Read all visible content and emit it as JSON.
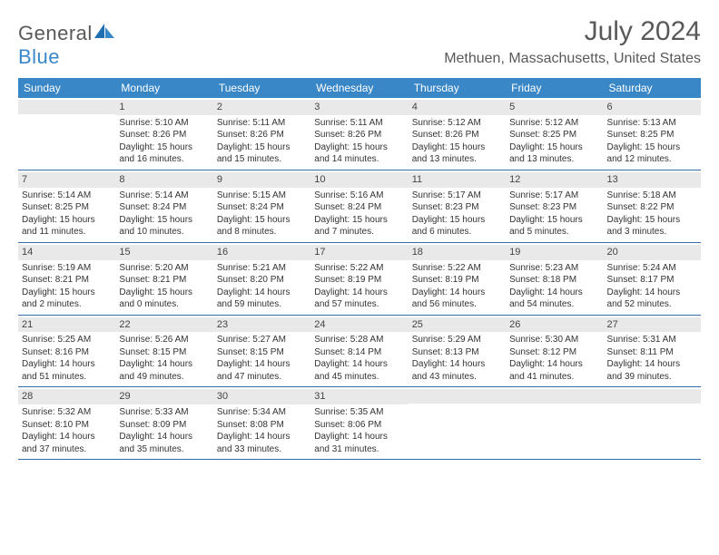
{
  "logo": {
    "general": "General",
    "blue": "Blue"
  },
  "title": "July 2024",
  "location": "Methuen, Massachusetts, United States",
  "colors": {
    "header_bg": "#3a87c7",
    "header_text": "#ffffff",
    "strip_bg": "#e9e9e9",
    "row_border": "#2f6ea8",
    "title_color": "#595959",
    "text_color": "#333333"
  },
  "day_headers": [
    "Sunday",
    "Monday",
    "Tuesday",
    "Wednesday",
    "Thursday",
    "Friday",
    "Saturday"
  ],
  "weeks": [
    [
      {
        "n": "",
        "sr": "",
        "ss": "",
        "dl": ""
      },
      {
        "n": "1",
        "sr": "Sunrise: 5:10 AM",
        "ss": "Sunset: 8:26 PM",
        "dl": "Daylight: 15 hours and 16 minutes."
      },
      {
        "n": "2",
        "sr": "Sunrise: 5:11 AM",
        "ss": "Sunset: 8:26 PM",
        "dl": "Daylight: 15 hours and 15 minutes."
      },
      {
        "n": "3",
        "sr": "Sunrise: 5:11 AM",
        "ss": "Sunset: 8:26 PM",
        "dl": "Daylight: 15 hours and 14 minutes."
      },
      {
        "n": "4",
        "sr": "Sunrise: 5:12 AM",
        "ss": "Sunset: 8:26 PM",
        "dl": "Daylight: 15 hours and 13 minutes."
      },
      {
        "n": "5",
        "sr": "Sunrise: 5:12 AM",
        "ss": "Sunset: 8:25 PM",
        "dl": "Daylight: 15 hours and 13 minutes."
      },
      {
        "n": "6",
        "sr": "Sunrise: 5:13 AM",
        "ss": "Sunset: 8:25 PM",
        "dl": "Daylight: 15 hours and 12 minutes."
      }
    ],
    [
      {
        "n": "7",
        "sr": "Sunrise: 5:14 AM",
        "ss": "Sunset: 8:25 PM",
        "dl": "Daylight: 15 hours and 11 minutes."
      },
      {
        "n": "8",
        "sr": "Sunrise: 5:14 AM",
        "ss": "Sunset: 8:24 PM",
        "dl": "Daylight: 15 hours and 10 minutes."
      },
      {
        "n": "9",
        "sr": "Sunrise: 5:15 AM",
        "ss": "Sunset: 8:24 PM",
        "dl": "Daylight: 15 hours and 8 minutes."
      },
      {
        "n": "10",
        "sr": "Sunrise: 5:16 AM",
        "ss": "Sunset: 8:24 PM",
        "dl": "Daylight: 15 hours and 7 minutes."
      },
      {
        "n": "11",
        "sr": "Sunrise: 5:17 AM",
        "ss": "Sunset: 8:23 PM",
        "dl": "Daylight: 15 hours and 6 minutes."
      },
      {
        "n": "12",
        "sr": "Sunrise: 5:17 AM",
        "ss": "Sunset: 8:23 PM",
        "dl": "Daylight: 15 hours and 5 minutes."
      },
      {
        "n": "13",
        "sr": "Sunrise: 5:18 AM",
        "ss": "Sunset: 8:22 PM",
        "dl": "Daylight: 15 hours and 3 minutes."
      }
    ],
    [
      {
        "n": "14",
        "sr": "Sunrise: 5:19 AM",
        "ss": "Sunset: 8:21 PM",
        "dl": "Daylight: 15 hours and 2 minutes."
      },
      {
        "n": "15",
        "sr": "Sunrise: 5:20 AM",
        "ss": "Sunset: 8:21 PM",
        "dl": "Daylight: 15 hours and 0 minutes."
      },
      {
        "n": "16",
        "sr": "Sunrise: 5:21 AM",
        "ss": "Sunset: 8:20 PM",
        "dl": "Daylight: 14 hours and 59 minutes."
      },
      {
        "n": "17",
        "sr": "Sunrise: 5:22 AM",
        "ss": "Sunset: 8:19 PM",
        "dl": "Daylight: 14 hours and 57 minutes."
      },
      {
        "n": "18",
        "sr": "Sunrise: 5:22 AM",
        "ss": "Sunset: 8:19 PM",
        "dl": "Daylight: 14 hours and 56 minutes."
      },
      {
        "n": "19",
        "sr": "Sunrise: 5:23 AM",
        "ss": "Sunset: 8:18 PM",
        "dl": "Daylight: 14 hours and 54 minutes."
      },
      {
        "n": "20",
        "sr": "Sunrise: 5:24 AM",
        "ss": "Sunset: 8:17 PM",
        "dl": "Daylight: 14 hours and 52 minutes."
      }
    ],
    [
      {
        "n": "21",
        "sr": "Sunrise: 5:25 AM",
        "ss": "Sunset: 8:16 PM",
        "dl": "Daylight: 14 hours and 51 minutes."
      },
      {
        "n": "22",
        "sr": "Sunrise: 5:26 AM",
        "ss": "Sunset: 8:15 PM",
        "dl": "Daylight: 14 hours and 49 minutes."
      },
      {
        "n": "23",
        "sr": "Sunrise: 5:27 AM",
        "ss": "Sunset: 8:15 PM",
        "dl": "Daylight: 14 hours and 47 minutes."
      },
      {
        "n": "24",
        "sr": "Sunrise: 5:28 AM",
        "ss": "Sunset: 8:14 PM",
        "dl": "Daylight: 14 hours and 45 minutes."
      },
      {
        "n": "25",
        "sr": "Sunrise: 5:29 AM",
        "ss": "Sunset: 8:13 PM",
        "dl": "Daylight: 14 hours and 43 minutes."
      },
      {
        "n": "26",
        "sr": "Sunrise: 5:30 AM",
        "ss": "Sunset: 8:12 PM",
        "dl": "Daylight: 14 hours and 41 minutes."
      },
      {
        "n": "27",
        "sr": "Sunrise: 5:31 AM",
        "ss": "Sunset: 8:11 PM",
        "dl": "Daylight: 14 hours and 39 minutes."
      }
    ],
    [
      {
        "n": "28",
        "sr": "Sunrise: 5:32 AM",
        "ss": "Sunset: 8:10 PM",
        "dl": "Daylight: 14 hours and 37 minutes."
      },
      {
        "n": "29",
        "sr": "Sunrise: 5:33 AM",
        "ss": "Sunset: 8:09 PM",
        "dl": "Daylight: 14 hours and 35 minutes."
      },
      {
        "n": "30",
        "sr": "Sunrise: 5:34 AM",
        "ss": "Sunset: 8:08 PM",
        "dl": "Daylight: 14 hours and 33 minutes."
      },
      {
        "n": "31",
        "sr": "Sunrise: 5:35 AM",
        "ss": "Sunset: 8:06 PM",
        "dl": "Daylight: 14 hours and 31 minutes."
      },
      {
        "n": "",
        "sr": "",
        "ss": "",
        "dl": ""
      },
      {
        "n": "",
        "sr": "",
        "ss": "",
        "dl": ""
      },
      {
        "n": "",
        "sr": "",
        "ss": "",
        "dl": ""
      }
    ]
  ]
}
